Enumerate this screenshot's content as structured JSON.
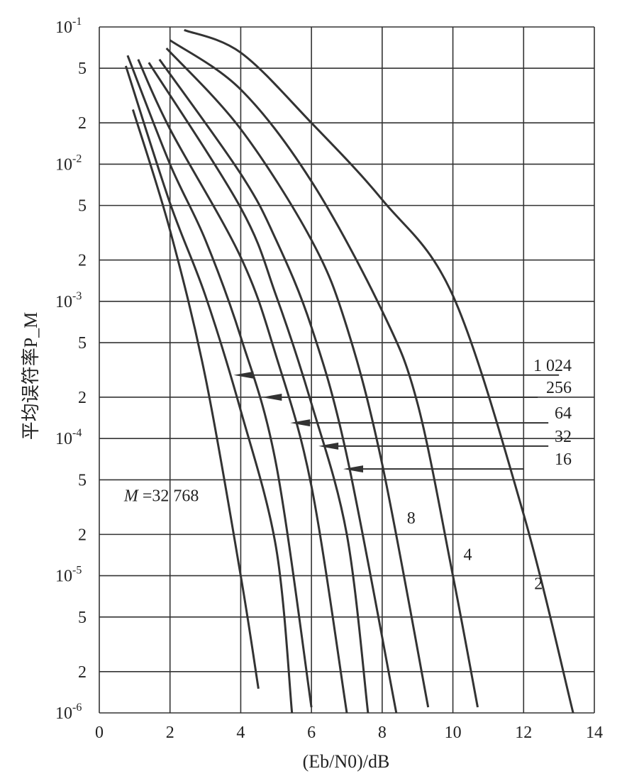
{
  "chart_data": {
    "type": "line",
    "xlabel": "(Eb/N0)/dB",
    "ylabel": "平均误符率P_M",
    "xlim": [
      0,
      14
    ],
    "ylim": [
      1e-06,
      0.1
    ],
    "y_scale": "log",
    "grid": true,
    "x_ticks": [
      "0",
      "2",
      "4",
      "6",
      "8",
      "10",
      "12",
      "14"
    ],
    "y_ticks": [
      {
        "v": 0.1,
        "m": "10",
        "e": "-1"
      },
      {
        "v": 0.05,
        "m": "5",
        "e": ""
      },
      {
        "v": 0.02,
        "m": "2",
        "e": ""
      },
      {
        "v": 0.01,
        "m": "10",
        "e": "-2"
      },
      {
        "v": 0.005,
        "m": "5",
        "e": ""
      },
      {
        "v": 0.002,
        "m": "2",
        "e": ""
      },
      {
        "v": 0.001,
        "m": "10",
        "e": "-3"
      },
      {
        "v": 0.0005,
        "m": "5",
        "e": ""
      },
      {
        "v": 0.0002,
        "m": "2",
        "e": ""
      },
      {
        "v": 0.0001,
        "m": "10",
        "e": "-4"
      },
      {
        "v": 5e-05,
        "m": "5",
        "e": ""
      },
      {
        "v": 2e-05,
        "m": "2",
        "e": ""
      },
      {
        "v": 1e-05,
        "m": "10",
        "e": "-5"
      },
      {
        "v": 5e-06,
        "m": "5",
        "e": ""
      },
      {
        "v": 2e-06,
        "m": "2",
        "e": ""
      },
      {
        "v": 1e-06,
        "m": "10",
        "e": "-6"
      }
    ],
    "series": [
      {
        "name": "2",
        "points": [
          [
            2.4,
            0.095
          ],
          [
            4,
            0.065
          ],
          [
            6,
            0.02
          ],
          [
            8,
            0.0055
          ],
          [
            10,
            0.0011
          ],
          [
            12,
            2.8e-05
          ],
          [
            13.4,
            1e-06
          ]
        ]
      },
      {
        "name": "4",
        "points": [
          [
            2.0,
            0.08
          ],
          [
            4,
            0.035
          ],
          [
            6,
            0.0075
          ],
          [
            8,
            0.00085
          ],
          [
            9,
            0.00018
          ],
          [
            10,
            1e-05
          ],
          [
            10.7,
            1.1e-06
          ]
        ]
      },
      {
        "name": "8",
        "points": [
          [
            1.9,
            0.07
          ],
          [
            4,
            0.018
          ],
          [
            6,
            0.0028
          ],
          [
            7,
            0.00065
          ],
          [
            8,
            6.5e-05
          ],
          [
            9.3,
            1.1e-06
          ]
        ]
      },
      {
        "name": "16",
        "points": [
          [
            1.7,
            0.058
          ],
          [
            4,
            0.0085
          ],
          [
            5,
            0.0028
          ],
          [
            6,
            0.00065
          ],
          [
            7,
            7.5e-05
          ],
          [
            8.4,
            1e-06
          ]
        ]
      },
      {
        "name": "32",
        "points": [
          [
            1.4,
            0.055
          ],
          [
            4,
            0.0048
          ],
          [
            5,
            0.0011
          ],
          [
            6,
            0.00018
          ],
          [
            7,
            2e-05
          ],
          [
            7.6,
            1e-06
          ]
        ]
      },
      {
        "name": "64",
        "points": [
          [
            1.1,
            0.058
          ],
          [
            2,
            0.018
          ],
          [
            4,
            0.0021
          ],
          [
            5,
            0.0004
          ],
          [
            6,
            4.5e-05
          ],
          [
            7.0,
            1e-06
          ]
        ]
      },
      {
        "name": "256",
        "points": [
          [
            0.8,
            0.062
          ],
          [
            2,
            0.01
          ],
          [
            3,
            0.0028
          ],
          [
            4,
            0.00055
          ],
          [
            5,
            6.5e-05
          ],
          [
            6,
            1.1e-06
          ]
        ]
      },
      {
        "name": "1024",
        "points": [
          [
            0.75,
            0.052
          ],
          [
            2,
            0.0052
          ],
          [
            3,
            0.0011
          ],
          [
            4,
            0.00016
          ],
          [
            5,
            1.6e-05
          ],
          [
            5.45,
            1e-06
          ]
        ]
      },
      {
        "name": "32768",
        "points": [
          [
            0.95,
            0.025
          ],
          [
            2,
            0.0033
          ],
          [
            3,
            0.00028
          ],
          [
            4,
            1e-05
          ],
          [
            4.5,
            1.5e-06
          ]
        ]
      }
    ],
    "annotations": [
      {
        "text": "2",
        "x": 12.3,
        "y": 8e-06
      },
      {
        "text": "4",
        "x": 10.3,
        "y": 1.3e-05
      },
      {
        "text": "8",
        "x": 8.7,
        "y": 2.4e-05
      },
      {
        "text": "M =32  768",
        "x": 0.7,
        "y": 3.5e-05
      }
    ],
    "callouts": [
      {
        "text": "1 024",
        "y": 0.00029,
        "from_x": 13.0,
        "to_x": 3.8
      },
      {
        "text": "256",
        "y": 0.0002,
        "from_x": 12.4,
        "to_x": 4.6
      },
      {
        "text": "64",
        "y": 0.00013,
        "from_x": 12.7,
        "to_x": 5.4
      },
      {
        "text": "32",
        "y": 8.8e-05,
        "from_x": 12.7,
        "to_x": 6.2
      },
      {
        "text": "16",
        "y": 6e-05,
        "from_x": 12.0,
        "to_x": 6.9
      }
    ]
  }
}
